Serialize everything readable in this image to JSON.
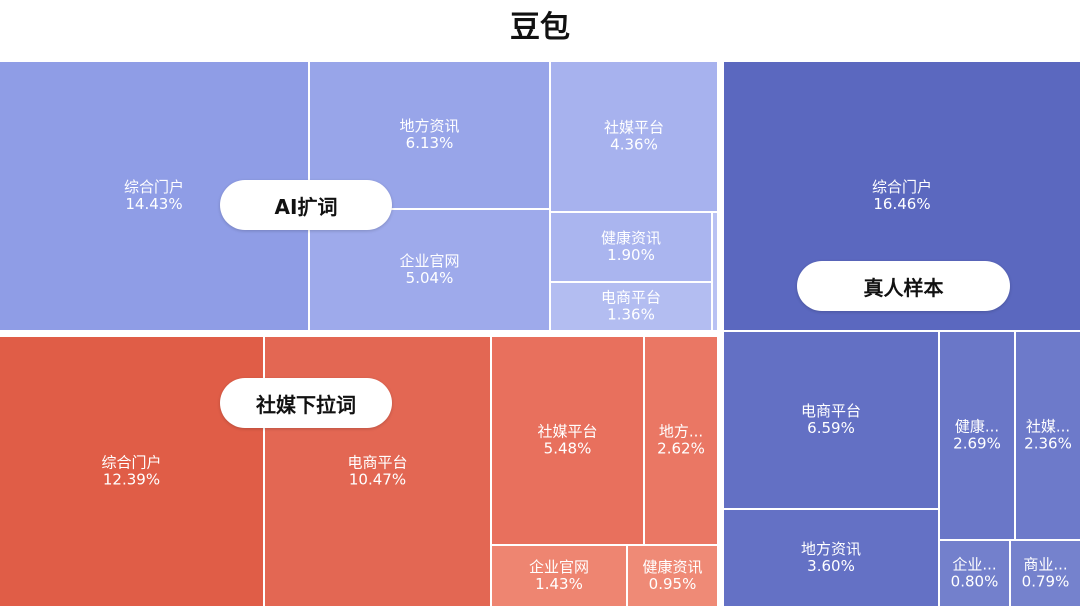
{
  "chart_data": {
    "type": "treemap",
    "title": "豆包",
    "groups": [
      {
        "name": "AI扩词",
        "color": "#8f9de6",
        "tiles": [
          {
            "label": "综合门户",
            "value": "14.43%",
            "color": "#8f9de6"
          },
          {
            "label": "地方资讯",
            "value": "6.13%",
            "color": "#98a5e9"
          },
          {
            "label": "企业官网",
            "value": "5.04%",
            "color": "#9eaaeb"
          },
          {
            "label": "社媒平台",
            "value": "4.36%",
            "color": "#a7b2ee"
          },
          {
            "label": "健康资讯",
            "value": "1.90%",
            "color": "#aab5ef"
          },
          {
            "label": "电商平台",
            "value": "1.36%",
            "color": "#b3bdf1"
          },
          {
            "label": "",
            "value": "",
            "color": "#b9c2f3"
          }
        ]
      },
      {
        "name": "社媒下拉词",
        "color": "#e05d47",
        "tiles": [
          {
            "label": "综合门户",
            "value": "12.39%",
            "color": "#e05d47"
          },
          {
            "label": "电商平台",
            "value": "10.47%",
            "color": "#e36753"
          },
          {
            "label": "社媒平台",
            "value": "5.48%",
            "color": "#e8705d"
          },
          {
            "label": "地方...",
            "value": "2.62%",
            "color": "#ea7764"
          },
          {
            "label": "企业官网",
            "value": "1.43%",
            "color": "#ee8571"
          },
          {
            "label": "健康资讯",
            "value": "0.95%",
            "color": "#ef8a76"
          }
        ]
      },
      {
        "name": "真人样本",
        "color": "#5b68bf",
        "tiles": [
          {
            "label": "综合门户",
            "value": "16.46%",
            "color": "#5b68bf"
          },
          {
            "label": "电商平台",
            "value": "6.59%",
            "color": "#6370c4"
          },
          {
            "label": "地方资讯",
            "value": "3.60%",
            "color": "#6471c5"
          },
          {
            "label": "健康...",
            "value": "2.69%",
            "color": "#6a77c8"
          },
          {
            "label": "社媒...",
            "value": "2.36%",
            "color": "#6d7aca"
          },
          {
            "label": "企业...",
            "value": "0.80%",
            "color": "#7380cc"
          },
          {
            "label": "商业...",
            "value": "0.79%",
            "color": "#7582cd"
          }
        ]
      }
    ]
  }
}
